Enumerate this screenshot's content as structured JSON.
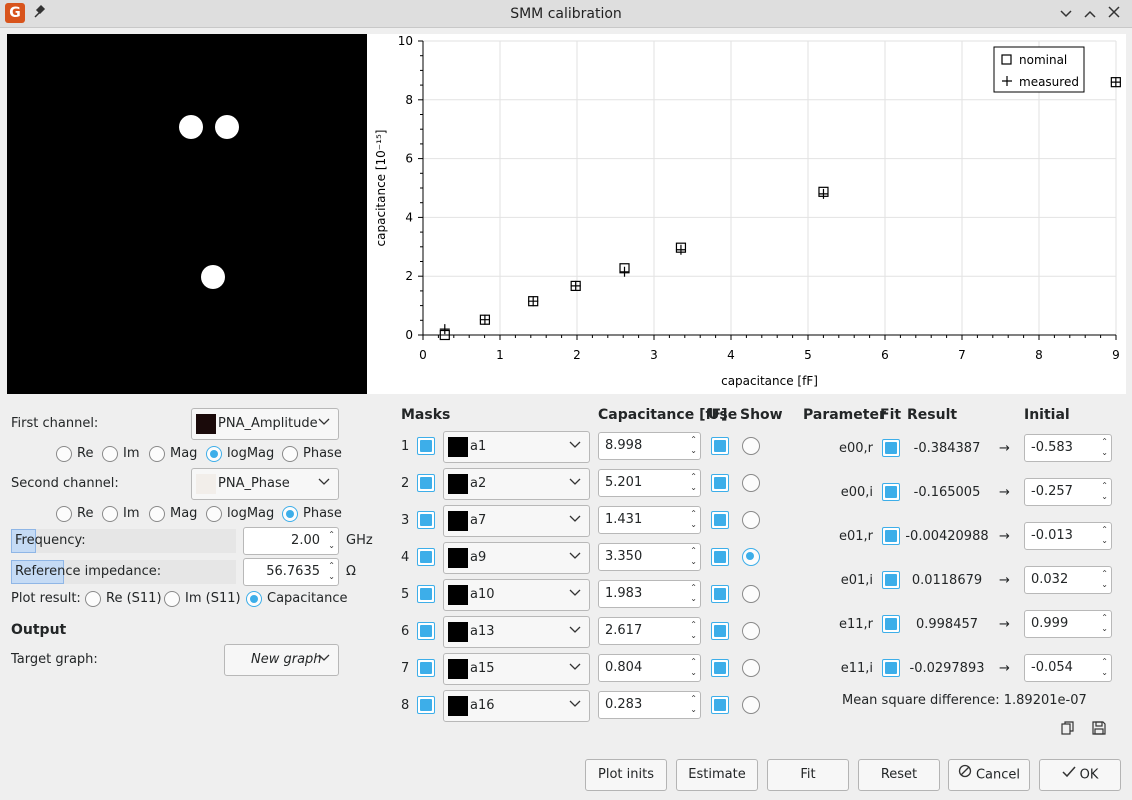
{
  "window": {
    "title": "SMM calibration"
  },
  "chart_data": {
    "type": "scatter",
    "xlabel": "capacitance [fF]",
    "ylabel": "capacitance [10⁻¹⁵]",
    "xlim": [
      0,
      9
    ],
    "ylim": [
      0,
      10
    ],
    "xticks": [
      "0",
      "1",
      "2",
      "3",
      "4",
      "5",
      "6",
      "7",
      "8",
      "9"
    ],
    "yticks": [
      "0",
      "2",
      "4",
      "6",
      "8",
      "10"
    ],
    "grid": true,
    "legend_position": "top-right",
    "series": [
      {
        "name": "nominal",
        "marker": "square",
        "x": [
          0.283,
          0.804,
          1.431,
          1.983,
          2.617,
          3.35,
          5.201,
          8.998
        ],
        "y": [
          0.0,
          0.52,
          1.15,
          1.67,
          2.27,
          2.97,
          4.87,
          8.6
        ]
      },
      {
        "name": "measured",
        "marker": "plus",
        "x": [
          0.283,
          0.804,
          1.431,
          1.983,
          2.617,
          3.35,
          5.201,
          8.998
        ],
        "y": [
          0.2,
          0.52,
          1.15,
          1.67,
          2.15,
          2.9,
          4.8,
          8.6
        ]
      }
    ]
  },
  "left": {
    "first_channel_label": "First channel:",
    "first_channel_value": "PNA_Amplitude",
    "second_channel_label": "Second channel:",
    "second_channel_value": "PNA_Phase",
    "radio_options": [
      "Re",
      "Im",
      "Mag",
      "logMag",
      "Phase"
    ],
    "first_selected": "logMag",
    "second_selected": "Phase",
    "frequency_label": "Frequency:",
    "frequency_value": "2.00",
    "frequency_unit": "GHz",
    "refimp_label": "Reference impedance:",
    "refimp_value": "56.7635",
    "refimp_unit": "Ω",
    "plot_result_label": "Plot result:",
    "plot_options": [
      "Re (S11)",
      "Im (S11)",
      "Capacitance"
    ],
    "plot_selected": "Capacitance",
    "output_header": "Output",
    "target_label": "Target graph:",
    "target_value": "New graph"
  },
  "masks": {
    "header_masks": "Masks",
    "header_cap": "Capacitance [fF]",
    "header_use": "Use",
    "header_show": "Show",
    "rows": [
      {
        "index": "1",
        "name": "a1",
        "cap": "8.998",
        "show": false
      },
      {
        "index": "2",
        "name": "a2",
        "cap": "5.201",
        "show": false
      },
      {
        "index": "3",
        "name": "a7",
        "cap": "1.431",
        "show": false
      },
      {
        "index": "4",
        "name": "a9",
        "cap": "3.350",
        "show": true
      },
      {
        "index": "5",
        "name": "a10",
        "cap": "1.983",
        "show": false
      },
      {
        "index": "6",
        "name": "a13",
        "cap": "2.617",
        "show": false
      },
      {
        "index": "7",
        "name": "a15",
        "cap": "0.804",
        "show": false
      },
      {
        "index": "8",
        "name": "a16",
        "cap": "0.283",
        "show": false
      }
    ]
  },
  "params": {
    "header_param": "Parameter",
    "header_fit": "Fit",
    "header_result": "Result",
    "header_initial": "Initial",
    "arrow": "→",
    "rows": [
      {
        "name": "e00,r",
        "result": "-0.384387",
        "initial": "-0.583"
      },
      {
        "name": "e00,i",
        "result": "-0.165005",
        "initial": "-0.257"
      },
      {
        "name": "e01,r",
        "result": "-0.00420988",
        "initial": "-0.013"
      },
      {
        "name": "e01,i",
        "result": "0.0118679",
        "initial": "0.032"
      },
      {
        "name": "e11,r",
        "result": "0.998457",
        "initial": "0.999"
      },
      {
        "name": "e11,i",
        "result": "-0.0297893",
        "initial": "-0.054"
      }
    ],
    "msd": "Mean square difference: 1.89201e-07"
  },
  "buttons": {
    "plot_inits": "Plot inits",
    "estimate": "Estimate",
    "fit": "Fit",
    "reset": "Reset",
    "cancel": "Cancel",
    "ok": "OK"
  }
}
